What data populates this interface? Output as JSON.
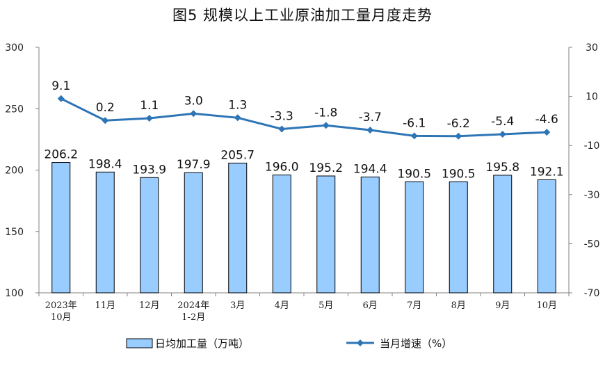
{
  "chart_data": {
    "type": "bar",
    "title": "图5  规模以上工业原油加工量月度走势",
    "categories": [
      [
        "2023年",
        "10月"
      ],
      [
        "11月"
      ],
      [
        "12月"
      ],
      [
        "2024年",
        "1-2月"
      ],
      [
        "3月"
      ],
      [
        "4月"
      ],
      [
        "5月"
      ],
      [
        "6月"
      ],
      [
        "7月"
      ],
      [
        "8月"
      ],
      [
        "9月"
      ],
      [
        "10月"
      ]
    ],
    "series": [
      {
        "name": "日均加工量（万吨）",
        "type": "bar",
        "axis": "left",
        "color": "#99CCFF",
        "values": [
          206.2,
          198.4,
          193.9,
          197.9,
          205.7,
          196.0,
          195.2,
          194.4,
          190.5,
          190.5,
          195.8,
          192.1
        ],
        "labels": [
          "206.2",
          "198.4",
          "193.9",
          "197.9",
          "205.7",
          "196.0",
          "195.2",
          "194.4",
          "190.5",
          "190.5",
          "195.8",
          "192.1"
        ]
      },
      {
        "name": "当月增速（%）",
        "type": "line",
        "axis": "right",
        "color": "#2E75B6",
        "values": [
          9.1,
          0.2,
          1.1,
          3.0,
          1.3,
          -3.3,
          -1.8,
          -3.7,
          -6.1,
          -6.2,
          -5.4,
          -4.6
        ],
        "labels": [
          "9.1",
          "0.2",
          "1.1",
          "3.0",
          "1.3",
          "-3.3",
          "-1.8",
          "-3.7",
          "-6.1",
          "-6.2",
          "-5.4",
          "-4.6"
        ]
      }
    ],
    "y_left": {
      "min": 100,
      "max": 300,
      "ticks": [
        "100",
        "150",
        "200",
        "250",
        "300"
      ]
    },
    "y_right": {
      "min": -70,
      "max": 30,
      "ticks": [
        "-70",
        "-50",
        "-30",
        "-10",
        "10",
        "30"
      ]
    },
    "grid": false,
    "legend_position": "bottom"
  }
}
